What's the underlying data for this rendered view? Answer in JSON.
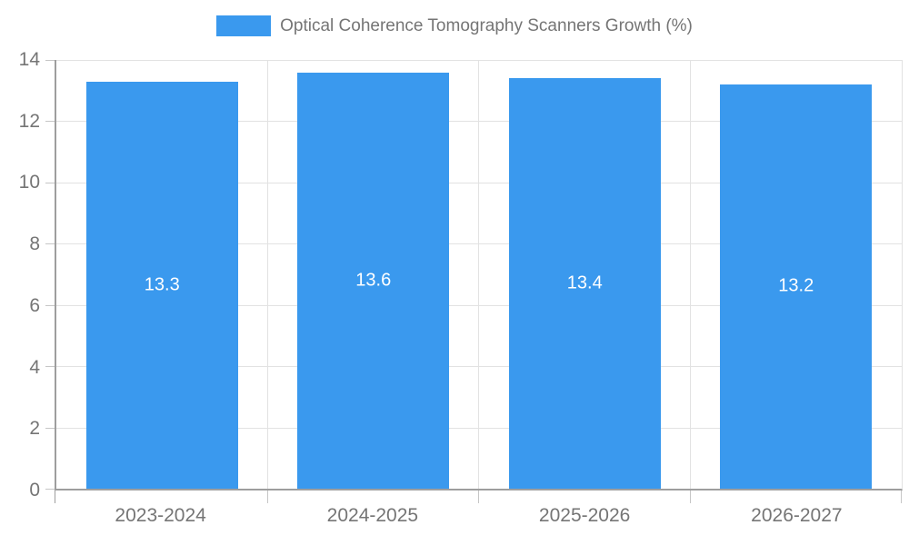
{
  "legend": {
    "label": "Optical Coherence Tomography Scanners Growth (%)"
  },
  "style": {
    "bar_color": "#3A99EE",
    "bar_label_color": "#ffffff",
    "axis_color": "#9e9e9e",
    "grid_color": "#e2e2e2",
    "tick_mark_color": "#c6c6c6",
    "tick_text_color": "#757575"
  },
  "chart_data": {
    "type": "bar",
    "title": "Optical Coherence Tomography Scanners Growth (%)",
    "categories": [
      "2023-2024",
      "2024-2025",
      "2025-2026",
      "2026-2027"
    ],
    "values": [
      13.3,
      13.6,
      13.4,
      13.2
    ],
    "value_labels": [
      "13.3",
      "13.6",
      "13.4",
      "13.2"
    ],
    "xlabel": "",
    "ylabel": "",
    "ylim": [
      0,
      14
    ],
    "yticks": [
      0,
      2,
      4,
      6,
      8,
      10,
      12,
      14
    ],
    "ytick_labels": [
      "0",
      "2",
      "4",
      "6",
      "8",
      "10",
      "12",
      "14"
    ],
    "grid": true,
    "legend_position": "top-center",
    "bar_label_position": "center-inside"
  }
}
